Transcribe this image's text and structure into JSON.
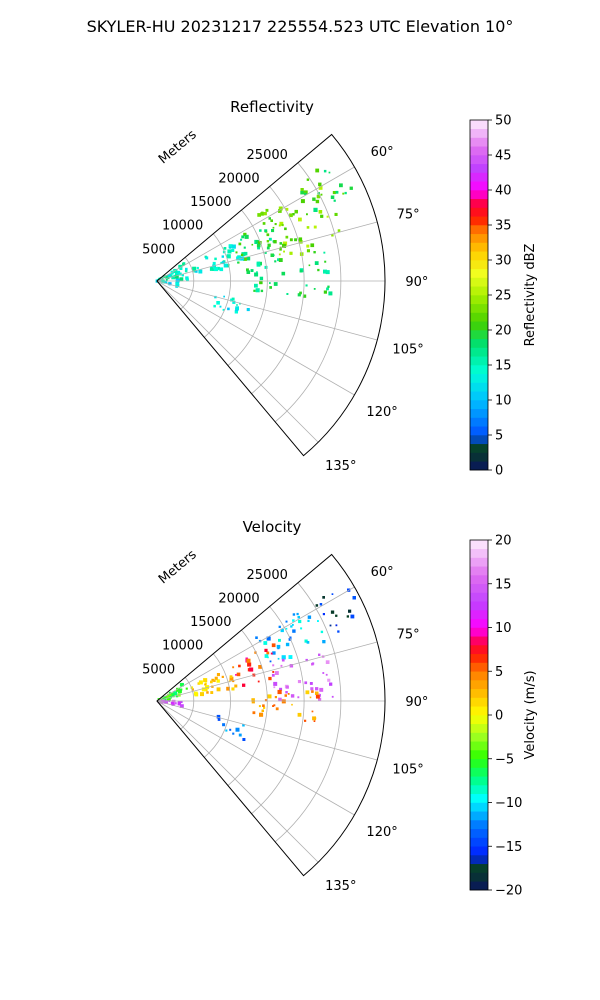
{
  "figure": {
    "title": "SKYLER-HU  20231217  225554.523 UTC Elevation 10°"
  },
  "chart_data": [
    {
      "type": "heatmap",
      "projection": "polar-sector",
      "title": "Reflectivity",
      "radial_label": "Meters",
      "radial_ticks": [
        5000,
        10000,
        15000,
        20000,
        25000
      ],
      "radial_range": [
        0,
        31000
      ],
      "azimuth_range": [
        50,
        140
      ],
      "azimuth_ticks": [
        "60°",
        "75°",
        "90°",
        "105°",
        "120°",
        "135°"
      ],
      "grid": true,
      "colorbar": {
        "label": "Reflectivity dBZ",
        "min": 0,
        "max": 50,
        "ticks": [
          "0",
          "5",
          "10",
          "15",
          "20",
          "25",
          "30",
          "35",
          "40",
          "45",
          "50"
        ],
        "colormap": "pyart_HomeyerRainbow"
      },
      "echo_regions": [
        {
          "az": [
            57,
            80
          ],
          "r": [
            16000,
            26000
          ],
          "value": 23
        },
        {
          "az": [
            62,
            80
          ],
          "r": [
            11000,
            18000
          ],
          "value": 19
        },
        {
          "az": [
            63,
            80
          ],
          "r": [
            5000,
            12000
          ],
          "value": 14
        },
        {
          "az": [
            80,
            96
          ],
          "r": [
            12000,
            24000
          ],
          "value": 18
        },
        {
          "az": [
            57,
            88
          ],
          "r": [
            0,
            4500
          ],
          "value": 15
        },
        {
          "az": [
            88,
            106
          ],
          "r": [
            0,
            3000
          ],
          "value": 12
        },
        {
          "az": [
            103,
            114
          ],
          "r": [
            8000,
            13000
          ],
          "value": 13
        },
        {
          "az": [
            55,
            66
          ],
          "r": [
            23000,
            30000
          ],
          "value": 20
        }
      ]
    },
    {
      "type": "heatmap",
      "projection": "polar-sector",
      "title": "Velocity",
      "radial_label": "Meters",
      "radial_ticks": [
        5000,
        10000,
        15000,
        20000,
        25000
      ],
      "radial_range": [
        0,
        31000
      ],
      "azimuth_range": [
        50,
        140
      ],
      "azimuth_ticks": [
        "60°",
        "75°",
        "90°",
        "105°",
        "120°",
        "135°"
      ],
      "grid": true,
      "colorbar": {
        "label": "Velocity (m/s)",
        "min": -20,
        "max": 20,
        "ticks": [
          "−20",
          "−15",
          "−10",
          "−5",
          "0",
          "5",
          "10",
          "15",
          "20"
        ],
        "colormap": "pyart_BuDRd18"
      },
      "echo_regions": [
        {
          "az": [
            57,
            72
          ],
          "r": [
            16000,
            25000
          ],
          "value": -11
        },
        {
          "az": [
            63,
            80
          ],
          "r": [
            11000,
            18000
          ],
          "value": 7
        },
        {
          "az": [
            66,
            82
          ],
          "r": [
            5000,
            11000
          ],
          "value": 2
        },
        {
          "az": [
            72,
            90
          ],
          "r": [
            16000,
            24000
          ],
          "value": 15
        },
        {
          "az": [
            85,
            98
          ],
          "r": [
            13000,
            22000
          ],
          "value": 4
        },
        {
          "az": [
            56,
            80
          ],
          "r": [
            0,
            4500
          ],
          "value": -5
        },
        {
          "az": [
            88,
            104
          ],
          "r": [
            0,
            3500
          ],
          "value": 14
        },
        {
          "az": [
            104,
            114
          ],
          "r": [
            8000,
            13000
          ],
          "value": -12
        },
        {
          "az": [
            58,
            70
          ],
          "r": [
            25000,
            31000
          ],
          "value": -16
        }
      ]
    }
  ]
}
